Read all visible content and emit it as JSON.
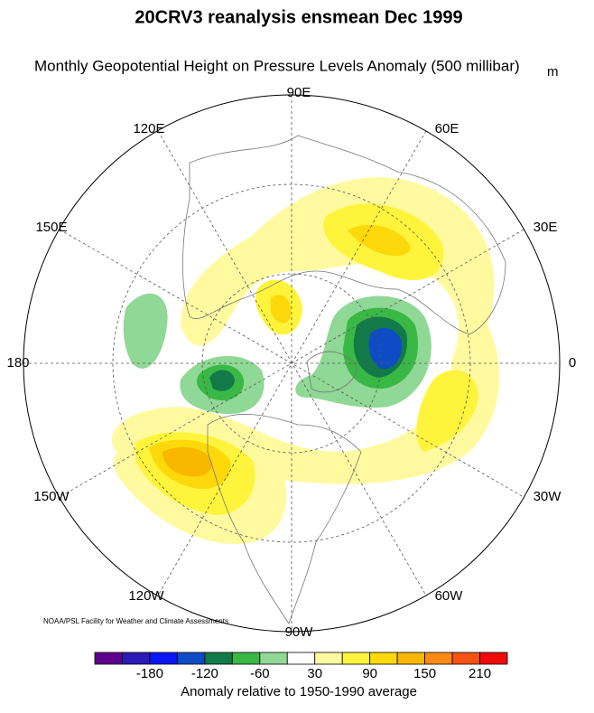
{
  "header": {
    "title": "20CRV3 reanalysis ensmean Dec 1999",
    "subtitle": "Monthly Geopotential Height on Pressure Levels Anomaly (500 millibar)",
    "units": "m"
  },
  "map": {
    "longitude_labels": [
      "90E",
      "60E",
      "30E",
      "0",
      "30W",
      "60W",
      "90W",
      "120W",
      "150W",
      "180",
      "150E",
      "120E"
    ],
    "credit": "NOAA/PSL Facility for Weather and Climate Assessments"
  },
  "colorbar": {
    "colors": [
      "#5e008e",
      "#2a1ab8",
      "#0b16f5",
      "#0d4cc4",
      "#127a48",
      "#39b845",
      "#8fd895",
      "#ffffff",
      "#fffaa0",
      "#fff43c",
      "#fdd80a",
      "#f9b700",
      "#fa8a13",
      "#f75210",
      "#f00a0a"
    ],
    "ticks": [
      -180,
      -120,
      -60,
      30,
      90,
      150,
      210
    ],
    "caption": "Anomaly relative to 1950-1990 average"
  }
}
